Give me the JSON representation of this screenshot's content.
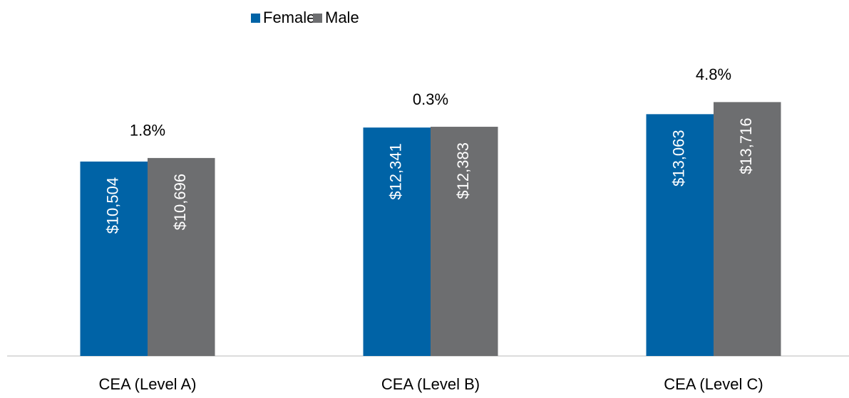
{
  "chart_data": {
    "type": "bar",
    "categories": [
      "CEA (Level A)",
      "CEA (Level B)",
      "CEA (Level C)"
    ],
    "series": [
      {
        "name": "Female",
        "color": "#0063a6",
        "values": [
          10504,
          12341,
          13063
        ],
        "value_labels": [
          "$10,504",
          "$12,341",
          "$13,063"
        ]
      },
      {
        "name": "Male",
        "color": "#6d6e70",
        "values": [
          10696,
          12383,
          13716
        ],
        "value_labels": [
          "$10,696",
          "$12,383",
          "$13,716"
        ]
      }
    ],
    "annotations": [
      "1.8%",
      "0.3%",
      "4.8%"
    ],
    "ylim": [
      0,
      15000
    ],
    "legend": "top"
  }
}
